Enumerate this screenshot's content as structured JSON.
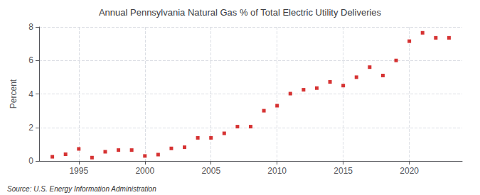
{
  "chart_data": {
    "type": "scatter",
    "title": "Annual Pennsylvania Natural Gas % of Total Electric Utility Deliveries",
    "ylabel": "Percent",
    "annotations": [
      "Source: U.S. Energy Information Administration"
    ],
    "x": [
      1993,
      1994,
      1995,
      1996,
      1997,
      1998,
      1999,
      2000,
      2001,
      2002,
      2003,
      2004,
      2005,
      2006,
      2007,
      2008,
      2009,
      2010,
      2011,
      2012,
      2013,
      2014,
      2015,
      2016,
      2017,
      2018,
      2019,
      2020,
      2021,
      2022,
      2023
    ],
    "values": [
      0.25,
      0.4,
      0.72,
      0.2,
      0.55,
      0.65,
      0.65,
      0.3,
      0.38,
      0.75,
      0.82,
      1.38,
      1.38,
      1.65,
      2.05,
      2.05,
      3.0,
      3.3,
      4.02,
      4.25,
      4.35,
      4.72,
      4.5,
      5.0,
      5.6,
      5.1,
      6.0,
      7.15,
      7.65,
      7.35,
      7.35
    ],
    "color": "#cc0000",
    "marker": "square",
    "xlim": [
      1992,
      2024
    ],
    "xticks": [
      1995,
      2000,
      2005,
      2010,
      2015,
      2020
    ],
    "ylim": [
      0,
      8
    ],
    "yticks": [
      0,
      2,
      4,
      6,
      8
    ],
    "grid": true
  }
}
